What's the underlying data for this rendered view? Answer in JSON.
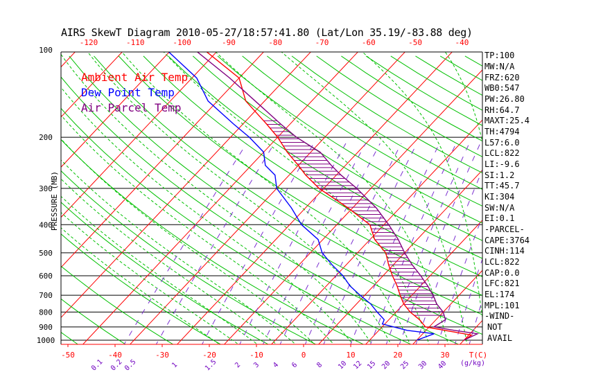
{
  "title": "AIRS SkewT Diagram 2010-05-27/18:57:41.80 (Lat/Lon 35.19/-83.88 deg)",
  "legend": [
    {
      "label": "Ambient Air Temp",
      "color": "#ff0000"
    },
    {
      "label": "Dew Point Temp",
      "color": "#0000ff"
    },
    {
      "label": "Air Parcel Temp",
      "color": "#800080"
    }
  ],
  "indices": [
    "TP:100",
    "MW:N/A",
    "FRZ:620",
    "WB0:547",
    "PW:26.80",
    "RH:64.7",
    "MAXT:25.4",
    "TH:4794",
    "L57:6.0",
    "LCL:822",
    "LI:-9.6",
    "SI:1.2",
    "TT:45.7",
    "KI:304",
    "SW:N/A",
    "EI:0.1",
    "-PARCEL-",
    "CAPE:3764",
    "CINH:114",
    "LCL:822",
    "CAP:0.0",
    "LFC:821",
    "EL:174",
    "MPL:101",
    "-WIND-",
    "NOT",
    "AVAIL"
  ],
  "chart_data": {
    "type": "line",
    "title": "AIRS SkewT Diagram 2010-05-27/18:57:41.80 (Lat/Lon 35.19/-83.88 deg)",
    "ylabel": "PRESSURE (MB)",
    "xlabel": "T(C)",
    "mixing_ratio_unit": "(g/kg)",
    "y_ticks": [
      100,
      200,
      300,
      400,
      500,
      600,
      700,
      800,
      900,
      1000
    ],
    "x_ticks_bottom": [
      -50,
      -40,
      -30,
      -20,
      -10,
      0,
      10,
      20,
      30
    ],
    "x_ticks_top": [
      -120,
      -110,
      -100,
      -90,
      -80,
      -70,
      -60,
      -50,
      -40
    ],
    "mixing_ratio_labels": [
      "0.1",
      "0.2",
      "0.5",
      "1",
      "1.5",
      "2",
      "3",
      "4",
      "6",
      "8",
      "10",
      "12",
      "15",
      "20",
      "25",
      "30",
      "40"
    ],
    "colors": {
      "grid": "#000000",
      "isotherm": "#ff0000",
      "dry_adiabat": "#00c000",
      "moist_adiabat": "#00c000",
      "mixing_ratio": "#7a2fd0",
      "bottom_axis": "#ff0000",
      "mr_label": "#7000c0"
    },
    "series": [
      {
        "name": "Ambient Air Temp",
        "color": "#ff0000",
        "points": [
          [
            1000,
            30
          ],
          [
            960,
            30.6
          ],
          [
            925,
            24
          ],
          [
            900,
            19.2
          ],
          [
            850,
            16.5
          ],
          [
            800,
            13
          ],
          [
            750,
            10
          ],
          [
            700,
            7.5
          ],
          [
            650,
            5
          ],
          [
            600,
            2
          ],
          [
            550,
            -1
          ],
          [
            500,
            -4
          ],
          [
            450,
            -9
          ],
          [
            400,
            -13
          ],
          [
            350,
            -21
          ],
          [
            300,
            -31
          ],
          [
            270,
            -36.5
          ],
          [
            250,
            -40
          ],
          [
            225,
            -45
          ],
          [
            200,
            -50
          ],
          [
            180,
            -55
          ],
          [
            150,
            -64
          ],
          [
            125,
            -70
          ],
          [
            100,
            -83
          ]
        ]
      },
      {
        "name": "Dew Point Temp",
        "color": "#0000ff",
        "points": [
          [
            1000,
            20
          ],
          [
            950,
            22.4
          ],
          [
            925,
            16
          ],
          [
            880,
            9.5
          ],
          [
            850,
            9
          ],
          [
            800,
            6
          ],
          [
            750,
            3
          ],
          [
            700,
            -1
          ],
          [
            650,
            -5
          ],
          [
            600,
            -8.5
          ],
          [
            550,
            -13
          ],
          [
            500,
            -17.5
          ],
          [
            450,
            -21
          ],
          [
            400,
            -27.5
          ],
          [
            350,
            -33
          ],
          [
            300,
            -40
          ],
          [
            270,
            -43
          ],
          [
            250,
            -47
          ],
          [
            225,
            -50
          ],
          [
            200,
            -56
          ],
          [
            180,
            -62
          ],
          [
            150,
            -72
          ],
          [
            125,
            -79
          ],
          [
            100,
            -91
          ]
        ]
      },
      {
        "name": "Air Parcel Temp",
        "color": "#800080",
        "points": [
          [
            1000,
            30
          ],
          [
            950,
            31.6
          ],
          [
            925,
            26
          ],
          [
            900,
            21
          ],
          [
            850,
            22
          ],
          [
            800,
            20
          ],
          [
            750,
            17
          ],
          [
            700,
            14.5
          ],
          [
            650,
            11.5
          ],
          [
            600,
            8
          ],
          [
            550,
            4
          ],
          [
            500,
            0
          ],
          [
            450,
            -4
          ],
          [
            400,
            -9
          ],
          [
            350,
            -15
          ],
          [
            300,
            -23
          ],
          [
            270,
            -29
          ],
          [
            250,
            -33
          ],
          [
            225,
            -38
          ],
          [
            200,
            -46
          ],
          [
            180,
            -52
          ],
          [
            150,
            -62
          ],
          [
            125,
            -72
          ],
          [
            100,
            -85
          ]
        ]
      }
    ],
    "cape_fill": "between Air Parcel Temp and Ambient Air Temp from 821 to 174 mb, horizontal hatching"
  }
}
